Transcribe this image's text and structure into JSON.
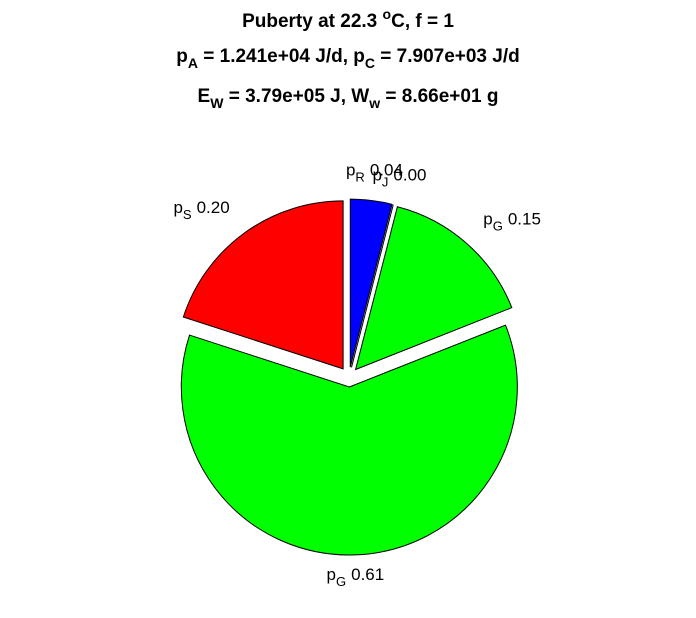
{
  "chart_data": {
    "type": "pie",
    "title": [
      [
        {
          "text": "Puberty at 22.3 "
        },
        {
          "text": "o",
          "style": "sup"
        },
        {
          "text": "C, f = 1"
        }
      ],
      [
        {
          "text": "p"
        },
        {
          "text": "A",
          "style": "sub"
        },
        {
          "text": " = 1.241e+04 J/d,  p"
        },
        {
          "text": "C",
          "style": "sub"
        },
        {
          "text": " = 7.907e+03 J/d"
        }
      ],
      [
        {
          "text": "E"
        },
        {
          "text": "W",
          "style": "sub"
        },
        {
          "text": " = 3.79e+05 J, W"
        },
        {
          "text": "w",
          "style": "sub"
        },
        {
          "text": " = 8.66e+01 g"
        }
      ]
    ],
    "labels": [
      {
        "base": "p",
        "sub": "R"
      },
      {
        "base": "p",
        "sub": "J"
      },
      {
        "base": "p",
        "sub": "G"
      },
      {
        "base": "p",
        "sub": "G"
      },
      {
        "base": "p",
        "sub": "S"
      }
    ],
    "values": [
      0.04,
      0,
      0.15,
      0.61,
      0.2
    ],
    "value_labels": [
      "0.04",
      "0.00",
      "0.15",
      "0.61",
      "0.20"
    ],
    "colors": [
      "#0000ff",
      "#ffff00",
      "#00ff00",
      "#00ff00",
      "#ff0000"
    ],
    "explode": true
  }
}
